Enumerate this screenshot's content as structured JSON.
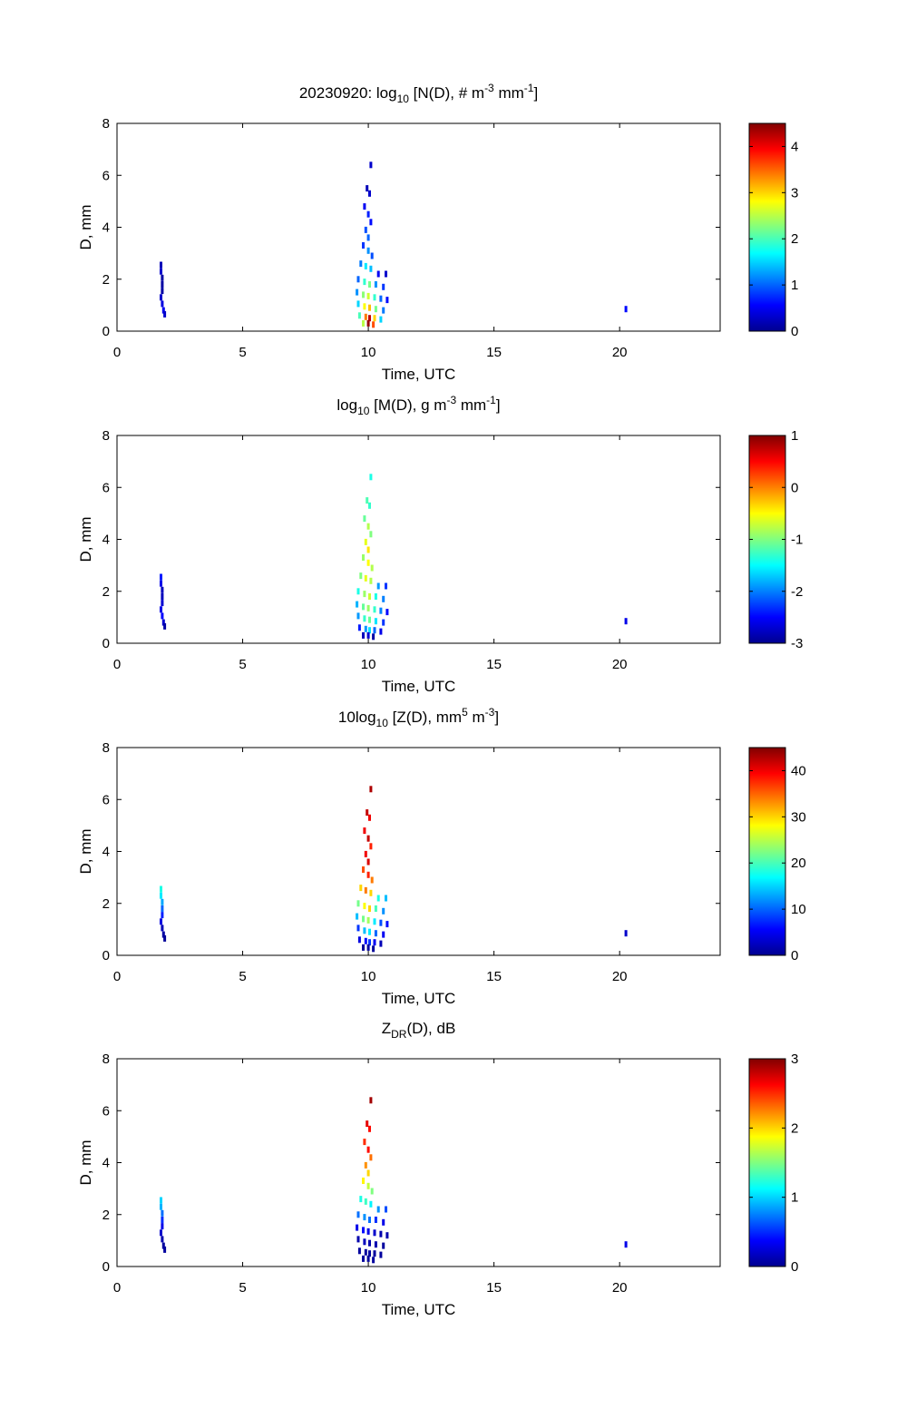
{
  "figure": {
    "date": "20230920"
  },
  "colormap": [
    "#00008f",
    "#0000ff",
    "#0080ff",
    "#00ffff",
    "#80ff80",
    "#ffff00",
    "#ff8000",
    "#ff0000",
    "#800000"
  ],
  "chart_data": [
    {
      "type": "heatmap",
      "title": {
        "prefix": "20230920: log",
        "sub": "10",
        "mid": " [N(D), # m",
        "sup1": "-3",
        "mid2": " mm",
        "sup2": "-1",
        "suffix": "]"
      },
      "xlabel": "Time, UTC",
      "ylabel": "D, mm",
      "xlim": [
        0,
        24
      ],
      "ylim": [
        0,
        8
      ],
      "xticks": [
        0,
        5,
        10,
        15,
        20
      ],
      "yticks": [
        0,
        2,
        4,
        6,
        8
      ],
      "colorbar": {
        "clim": [
          0,
          4.5
        ],
        "ticks": [
          0,
          1,
          2,
          3,
          4
        ]
      },
      "points": [
        [
          1.75,
          2.55,
          0.2
        ],
        [
          1.75,
          2.3,
          0.3
        ],
        [
          1.8,
          2.05,
          0.1
        ],
        [
          1.8,
          1.8,
          0.1
        ],
        [
          1.8,
          1.55,
          0.1
        ],
        [
          1.75,
          1.3,
          0.3
        ],
        [
          1.8,
          1.05,
          0.4
        ],
        [
          1.85,
          0.8,
          0.5
        ],
        [
          1.9,
          0.65,
          0.3
        ],
        [
          10.1,
          6.4,
          0.3
        ],
        [
          9.95,
          5.5,
          0.2
        ],
        [
          10.05,
          5.3,
          0.3
        ],
        [
          9.85,
          4.8,
          0.5
        ],
        [
          10.0,
          4.5,
          0.7
        ],
        [
          10.1,
          4.2,
          0.6
        ],
        [
          9.9,
          3.9,
          0.9
        ],
        [
          10.0,
          3.6,
          1.0
        ],
        [
          9.8,
          3.3,
          0.8
        ],
        [
          10.0,
          3.1,
          1.2
        ],
        [
          10.15,
          2.9,
          0.9
        ],
        [
          9.7,
          2.6,
          1.1
        ],
        [
          9.9,
          2.5,
          1.6
        ],
        [
          10.1,
          2.4,
          1.4
        ],
        [
          10.4,
          2.2,
          0.5
        ],
        [
          10.7,
          2.2,
          0.3
        ],
        [
          9.6,
          2.0,
          1.0
        ],
        [
          9.85,
          1.9,
          1.9
        ],
        [
          10.05,
          1.8,
          2.2
        ],
        [
          10.3,
          1.8,
          1.2
        ],
        [
          10.6,
          1.7,
          0.8
        ],
        [
          9.55,
          1.5,
          1.2
        ],
        [
          9.8,
          1.4,
          2.3
        ],
        [
          10.0,
          1.35,
          2.6
        ],
        [
          10.25,
          1.3,
          1.9
        ],
        [
          10.5,
          1.25,
          1.0
        ],
        [
          10.75,
          1.2,
          0.6
        ],
        [
          9.6,
          1.05,
          1.5
        ],
        [
          9.85,
          0.95,
          2.8
        ],
        [
          10.05,
          0.9,
          3.1
        ],
        [
          10.3,
          0.85,
          2.2
        ],
        [
          10.6,
          0.8,
          1.1
        ],
        [
          9.65,
          0.6,
          2.0
        ],
        [
          9.9,
          0.55,
          3.4
        ],
        [
          10.05,
          0.5,
          4.2
        ],
        [
          10.25,
          0.5,
          3.0
        ],
        [
          10.5,
          0.45,
          1.5
        ],
        [
          10.0,
          0.3,
          4.4
        ],
        [
          10.2,
          0.25,
          3.6
        ],
        [
          9.8,
          0.3,
          2.5
        ],
        [
          20.25,
          0.85,
          0.6
        ]
      ]
    },
    {
      "type": "heatmap",
      "title": {
        "prefix": "log",
        "sub": "10",
        "mid": " [M(D), g m",
        "sup1": "-3",
        "mid2": " mm",
        "sup2": "-1",
        "suffix": "]"
      },
      "xlabel": "Time, UTC",
      "ylabel": "D, mm",
      "xlim": [
        0,
        24
      ],
      "ylim": [
        0,
        8
      ],
      "xticks": [
        0,
        5,
        10,
        15,
        20
      ],
      "yticks": [
        0,
        2,
        4,
        6,
        8
      ],
      "colorbar": {
        "clim": [
          -3,
          1
        ],
        "ticks": [
          -3,
          -2,
          -1,
          0,
          1
        ]
      },
      "points": [
        [
          1.75,
          2.55,
          -2.4
        ],
        [
          1.75,
          2.3,
          -2.6
        ],
        [
          1.8,
          2.05,
          -2.8
        ],
        [
          1.8,
          1.8,
          -2.8
        ],
        [
          1.8,
          1.55,
          -2.7
        ],
        [
          1.75,
          1.3,
          -2.6
        ],
        [
          1.8,
          1.05,
          -2.5
        ],
        [
          1.85,
          0.8,
          -2.7
        ],
        [
          1.9,
          0.65,
          -2.9
        ],
        [
          10.1,
          6.4,
          -1.4
        ],
        [
          9.95,
          5.5,
          -1.2
        ],
        [
          10.05,
          5.3,
          -1.3
        ],
        [
          9.85,
          4.8,
          -1.1
        ],
        [
          10.0,
          4.5,
          -0.8
        ],
        [
          10.1,
          4.2,
          -1.0
        ],
        [
          9.9,
          3.9,
          -0.6
        ],
        [
          10.0,
          3.6,
          -0.4
        ],
        [
          9.8,
          3.3,
          -0.9
        ],
        [
          10.0,
          3.1,
          -0.5
        ],
        [
          10.15,
          2.9,
          -0.8
        ],
        [
          9.7,
          2.6,
          -1.0
        ],
        [
          9.9,
          2.5,
          -0.6
        ],
        [
          10.1,
          2.4,
          -0.8
        ],
        [
          10.4,
          2.2,
          -1.9
        ],
        [
          10.7,
          2.2,
          -2.3
        ],
        [
          9.6,
          2.0,
          -1.4
        ],
        [
          9.85,
          1.9,
          -0.9
        ],
        [
          10.05,
          1.8,
          -0.7
        ],
        [
          10.3,
          1.8,
          -1.4
        ],
        [
          10.6,
          1.7,
          -2.0
        ],
        [
          9.55,
          1.5,
          -1.8
        ],
        [
          9.8,
          1.4,
          -1.1
        ],
        [
          10.0,
          1.35,
          -0.9
        ],
        [
          10.25,
          1.3,
          -1.3
        ],
        [
          10.5,
          1.25,
          -2.0
        ],
        [
          10.75,
          1.2,
          -2.5
        ],
        [
          9.6,
          1.05,
          -1.9
        ],
        [
          9.85,
          0.95,
          -1.3
        ],
        [
          10.05,
          0.9,
          -1.1
        ],
        [
          10.3,
          0.85,
          -1.6
        ],
        [
          10.6,
          0.8,
          -2.3
        ],
        [
          9.65,
          0.6,
          -2.4
        ],
        [
          9.9,
          0.55,
          -1.9
        ],
        [
          10.05,
          0.5,
          -1.6
        ],
        [
          10.25,
          0.5,
          -2.1
        ],
        [
          10.5,
          0.45,
          -2.6
        ],
        [
          10.0,
          0.3,
          -2.7
        ],
        [
          10.2,
          0.25,
          -2.9
        ],
        [
          9.8,
          0.3,
          -2.8
        ],
        [
          20.25,
          0.85,
          -2.6
        ]
      ]
    },
    {
      "type": "heatmap",
      "title": {
        "prefix": "10log",
        "sub": "10",
        "mid": " [Z(D),  mm",
        "sup1": "5",
        "mid2": " m",
        "sup2": "-3",
        "suffix": "]"
      },
      "xlabel": "Time, UTC",
      "ylabel": "D, mm",
      "xlim": [
        0,
        24
      ],
      "ylim": [
        0,
        8
      ],
      "xticks": [
        0,
        5,
        10,
        15,
        20
      ],
      "yticks": [
        0,
        2,
        4,
        6,
        8
      ],
      "colorbar": {
        "clim": [
          0,
          45
        ],
        "ticks": [
          0,
          10,
          20,
          30,
          40
        ]
      },
      "points": [
        [
          1.75,
          2.55,
          18
        ],
        [
          1.75,
          2.3,
          16
        ],
        [
          1.8,
          2.05,
          13
        ],
        [
          1.8,
          1.8,
          10
        ],
        [
          1.8,
          1.55,
          7
        ],
        [
          1.75,
          1.3,
          4
        ],
        [
          1.8,
          1.05,
          2
        ],
        [
          1.85,
          0.8,
          1
        ],
        [
          1.9,
          0.65,
          0.5
        ],
        [
          10.1,
          6.4,
          43
        ],
        [
          9.95,
          5.5,
          42
        ],
        [
          10.05,
          5.3,
          40
        ],
        [
          9.85,
          4.8,
          40
        ],
        [
          10.0,
          4.5,
          42
        ],
        [
          10.1,
          4.2,
          38
        ],
        [
          9.9,
          3.9,
          40
        ],
        [
          10.0,
          3.6,
          41
        ],
        [
          9.8,
          3.3,
          36
        ],
        [
          10.0,
          3.1,
          38
        ],
        [
          10.15,
          2.9,
          34
        ],
        [
          9.7,
          2.6,
          30
        ],
        [
          9.9,
          2.5,
          34
        ],
        [
          10.1,
          2.4,
          30
        ],
        [
          10.4,
          2.2,
          18
        ],
        [
          10.7,
          2.2,
          14
        ],
        [
          9.6,
          2.0,
          22
        ],
        [
          9.85,
          1.9,
          28
        ],
        [
          10.05,
          1.8,
          30
        ],
        [
          10.3,
          1.8,
          20
        ],
        [
          10.6,
          1.7,
          12
        ],
        [
          9.55,
          1.5,
          14
        ],
        [
          9.8,
          1.4,
          22
        ],
        [
          10.0,
          1.35,
          24
        ],
        [
          10.25,
          1.3,
          16
        ],
        [
          10.5,
          1.25,
          9
        ],
        [
          10.75,
          1.2,
          6
        ],
        [
          9.6,
          1.05,
          8
        ],
        [
          9.85,
          0.95,
          14
        ],
        [
          10.05,
          0.9,
          16
        ],
        [
          10.3,
          0.85,
          10
        ],
        [
          10.6,
          0.8,
          5
        ],
        [
          9.65,
          0.6,
          4
        ],
        [
          9.9,
          0.55,
          6
        ],
        [
          10.05,
          0.5,
          8
        ],
        [
          10.25,
          0.5,
          5
        ],
        [
          10.5,
          0.45,
          2
        ],
        [
          10.0,
          0.3,
          1
        ],
        [
          10.2,
          0.25,
          0.5
        ],
        [
          9.8,
          0.3,
          0.5
        ],
        [
          20.25,
          0.85,
          3
        ]
      ]
    },
    {
      "type": "heatmap",
      "title": {
        "prefix": "Z",
        "sub": "DR",
        "mid": "(D), dB",
        "sup1": "",
        "mid2": "",
        "sup2": "",
        "suffix": ""
      },
      "xlabel": "Time, UTC",
      "ylabel": "D, mm",
      "xlim": [
        0,
        24
      ],
      "ylim": [
        0,
        8
      ],
      "xticks": [
        0,
        5,
        10,
        15,
        20
      ],
      "yticks": [
        0,
        2,
        4,
        6,
        8
      ],
      "colorbar": {
        "clim": [
          0,
          3
        ],
        "ticks": [
          0,
          1,
          2,
          3
        ]
      },
      "points": [
        [
          1.75,
          2.55,
          1.0
        ],
        [
          1.75,
          2.3,
          0.9
        ],
        [
          1.8,
          2.05,
          0.7
        ],
        [
          1.8,
          1.8,
          0.5
        ],
        [
          1.8,
          1.55,
          0.3
        ],
        [
          1.75,
          1.3,
          0.2
        ],
        [
          1.8,
          1.05,
          0.1
        ],
        [
          1.85,
          0.8,
          0.05
        ],
        [
          1.9,
          0.65,
          0.05
        ],
        [
          10.1,
          6.4,
          2.9
        ],
        [
          9.95,
          5.5,
          2.7
        ],
        [
          10.05,
          5.3,
          2.6
        ],
        [
          9.85,
          4.8,
          2.5
        ],
        [
          10.0,
          4.5,
          2.6
        ],
        [
          10.1,
          4.2,
          2.3
        ],
        [
          9.9,
          3.9,
          2.2
        ],
        [
          10.0,
          3.6,
          2.0
        ],
        [
          9.8,
          3.3,
          1.9
        ],
        [
          10.0,
          3.1,
          1.7
        ],
        [
          10.15,
          2.9,
          1.5
        ],
        [
          9.7,
          2.6,
          1.2
        ],
        [
          9.9,
          2.5,
          1.3
        ],
        [
          10.1,
          2.4,
          1.1
        ],
        [
          10.4,
          2.2,
          0.8
        ],
        [
          10.7,
          2.2,
          0.6
        ],
        [
          9.6,
          2.0,
          0.7
        ],
        [
          9.85,
          1.9,
          0.8
        ],
        [
          10.05,
          1.8,
          0.7
        ],
        [
          10.3,
          1.8,
          0.5
        ],
        [
          10.6,
          1.7,
          0.3
        ],
        [
          9.55,
          1.5,
          0.3
        ],
        [
          9.8,
          1.4,
          0.4
        ],
        [
          10.0,
          1.35,
          0.3
        ],
        [
          10.25,
          1.3,
          0.2
        ],
        [
          10.5,
          1.25,
          0.1
        ],
        [
          10.75,
          1.2,
          0.1
        ],
        [
          9.6,
          1.05,
          0.1
        ],
        [
          9.85,
          0.95,
          0.15
        ],
        [
          10.05,
          0.9,
          0.1
        ],
        [
          10.3,
          0.85,
          0.1
        ],
        [
          10.6,
          0.8,
          0.05
        ],
        [
          9.65,
          0.6,
          0.05
        ],
        [
          9.9,
          0.55,
          0.05
        ],
        [
          10.05,
          0.5,
          0.05
        ],
        [
          10.25,
          0.5,
          0.05
        ],
        [
          10.5,
          0.45,
          0.05
        ],
        [
          10.0,
          0.3,
          0.05
        ],
        [
          10.2,
          0.25,
          0.05
        ],
        [
          9.8,
          0.3,
          0.05
        ],
        [
          20.25,
          0.85,
          0.3
        ]
      ]
    }
  ]
}
